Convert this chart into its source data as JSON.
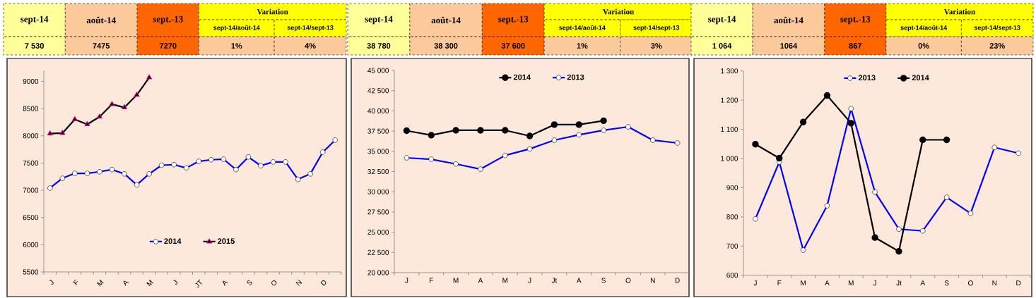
{
  "chart_data": [
    {
      "type": "other",
      "annotations": [
        "sept-14",
        "août-14",
        "sept.-13",
        "Variation",
        "sept-14/août-14",
        "sept-14/sept-13",
        "7 530",
        "7475",
        "7270",
        "1%",
        "4%"
      ]
    },
    {
      "type": "other",
      "annotations": [
        "sept-14",
        "août-14",
        "sept.-13",
        "Variation",
        "sept-14/août-14",
        "sept-14/sept-13",
        "38 780",
        "38 300",
        "37 600",
        "1%",
        "3%"
      ]
    },
    {
      "type": "other",
      "annotations": [
        "sept-14",
        "août-14",
        "sept.-13",
        "Variation",
        "sept-14/août-14",
        "sept-14/sept-13",
        "1 064",
        "1064",
        "867",
        "0%",
        "23%"
      ]
    },
    {
      "type": "line",
      "categories": [
        "J",
        null,
        "F",
        null,
        "M",
        null,
        "A",
        null,
        "M",
        null,
        "J",
        null,
        "JT",
        null,
        "A",
        null,
        "S",
        null,
        "O",
        null,
        "N",
        null,
        "D",
        null
      ],
      "series": [
        {
          "name": "2014",
          "color": "#0000ff",
          "marker": "circle",
          "values": [
            7040,
            7220,
            7310,
            7310,
            7340,
            7380,
            7300,
            7100,
            7300,
            7460,
            7470,
            7410,
            7530,
            7560,
            7570,
            7380,
            7610,
            7450,
            7520,
            7520,
            7200,
            7300,
            7700,
            7920
          ]
        },
        {
          "name": "2015",
          "color": "#000000",
          "marker": "triangle",
          "values": [
            8040,
            8050,
            8300,
            8210,
            8350,
            8580,
            8520,
            8750,
            9070,
            null,
            null,
            null,
            null,
            null,
            null,
            null,
            null,
            null,
            null,
            null,
            null,
            null,
            null,
            null
          ]
        }
      ],
      "ylim": [
        5500,
        9200
      ],
      "yticks": [
        5500,
        6000,
        6500,
        7000,
        7500,
        8000,
        8500,
        9000
      ],
      "grid": false,
      "legend": "bottom"
    },
    {
      "type": "line",
      "categories": [
        "J",
        "F",
        "M",
        "A",
        "M",
        "J",
        "Jt",
        "A",
        "S",
        "O",
        "N",
        "D"
      ],
      "series": [
        {
          "name": "2014",
          "color": "#000000",
          "marker": "circle",
          "values": [
            37550,
            37000,
            37600,
            37600,
            37600,
            36900,
            38300,
            38300,
            38780,
            null,
            null,
            null
          ]
        },
        {
          "name": "2013",
          "color": "#0000ff",
          "marker": "circle",
          "values": [
            34200,
            34020,
            33440,
            32800,
            34490,
            35300,
            36380,
            37040,
            37600,
            38030,
            36380,
            36030
          ]
        }
      ],
      "ylim": [
        20000,
        45000
      ],
      "yticks": [
        {
          "value": 20000,
          "label": "20 000"
        },
        {
          "value": 22500,
          "label": "22 500"
        },
        {
          "value": 25000,
          "label": "25 000"
        },
        {
          "value": 27500,
          "label": "27 500"
        },
        {
          "value": 30000,
          "label": "30 000"
        },
        {
          "value": 32500,
          "label": "32 500"
        },
        {
          "value": 35000,
          "label": "35 000"
        },
        {
          "value": 37500,
          "label": "37 500"
        },
        {
          "value": 40000,
          "label": "40 000"
        },
        {
          "value": 42500,
          "label": "42 500"
        },
        {
          "value": 45000,
          "label": "45 000"
        }
      ],
      "grid": false,
      "legend": "top"
    },
    {
      "type": "line",
      "categories": [
        "J",
        "F",
        "M",
        "A",
        "M",
        "J",
        "Jt",
        "A",
        "S",
        "O",
        "N",
        "D"
      ],
      "series": [
        {
          "name": "2013",
          "color": "#0000ff",
          "marker": "circle",
          "values": [
            793,
            988,
            686,
            838,
            1171,
            885,
            758,
            752,
            867,
            812,
            1038,
            1018
          ]
        },
        {
          "name": "2014",
          "color": "#000000",
          "marker": "circle",
          "values": [
            1049,
            1001,
            1125,
            1216,
            1121,
            729,
            682,
            1064,
            1064,
            null,
            null,
            null
          ]
        }
      ],
      "ylim": [
        600,
        1300
      ],
      "yticks": [
        600,
        700,
        800,
        {
          "value": 900,
          "label": "900"
        },
        {
          "value": 1000,
          "label": "1 000"
        },
        {
          "value": 1100,
          "label": "1 100"
        },
        {
          "value": 1200,
          "label": "1 200"
        },
        {
          "value": 1300,
          "label": "1 300"
        }
      ],
      "grid": false,
      "legend": "top"
    }
  ]
}
